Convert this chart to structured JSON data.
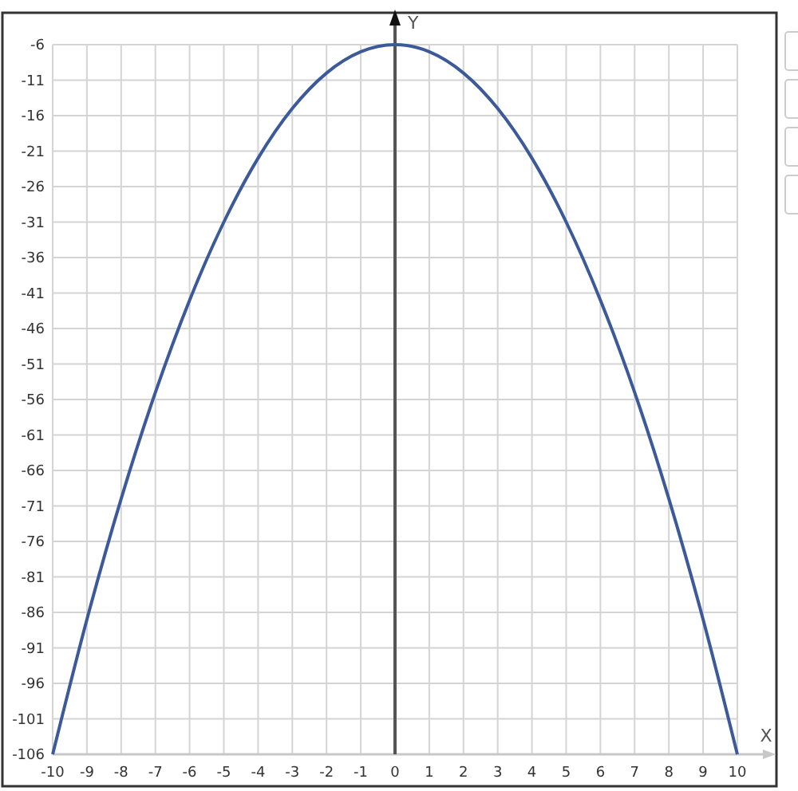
{
  "chart_data": {
    "type": "line",
    "xlabel": "X",
    "ylabel": "Y",
    "x": [
      -10,
      -9,
      -8,
      -7,
      -6,
      -5,
      -4,
      -3,
      -2,
      -1,
      0,
      1,
      2,
      3,
      4,
      5,
      6,
      7,
      8,
      9,
      10
    ],
    "series": [
      {
        "color": "#3c5a9a",
        "values": [
          -106,
          -87,
          -70,
          -55,
          -42,
          -31,
          -22,
          -15,
          -10,
          -7,
          -6,
          -7,
          -10,
          -15,
          -22,
          -31,
          -42,
          -55,
          -70,
          -87,
          -106
        ]
      }
    ],
    "xlim": [
      -10,
      10
    ],
    "ylim": [
      -106,
      -6
    ],
    "xticks": [
      -10,
      -9,
      -8,
      -7,
      -6,
      -5,
      -4,
      -3,
      -2,
      -1,
      0,
      1,
      2,
      3,
      4,
      5,
      6,
      7,
      8,
      9,
      10
    ],
    "yticks": [
      -6,
      -11,
      -16,
      -21,
      -26,
      -31,
      -36,
      -41,
      -46,
      -51,
      -56,
      -61,
      -66,
      -71,
      -76,
      -81,
      -86,
      -91,
      -96,
      -101,
      -106
    ],
    "grid": true,
    "marker": "none",
    "line_style": "solid"
  }
}
